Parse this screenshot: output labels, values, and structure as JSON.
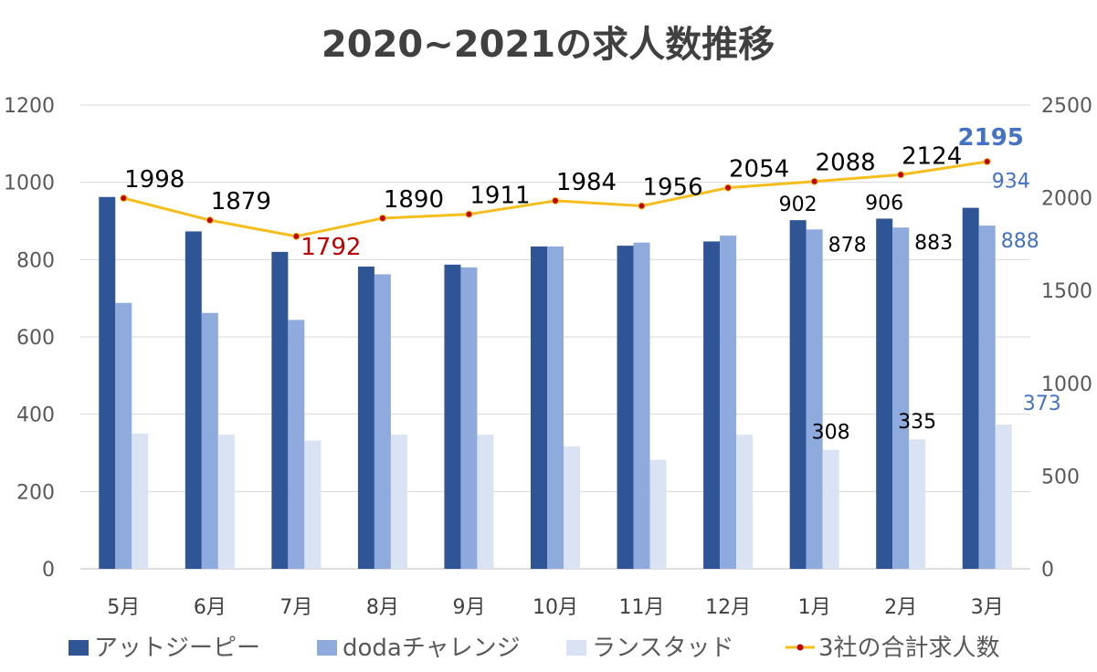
{
  "chart_data": {
    "type": "bar",
    "title": "2020~2021の求人数推移",
    "categories": [
      "5月",
      "6月",
      "7月",
      "8月",
      "9月",
      "10月",
      "11月",
      "12月",
      "1月",
      "2月",
      "3月"
    ],
    "y_left": {
      "ylim": [
        0,
        1200
      ],
      "ticks": [
        "0",
        "200",
        "400",
        "600",
        "800",
        "1000",
        "1200"
      ]
    },
    "y_right": {
      "ylim": [
        0,
        2500
      ],
      "ticks": [
        "0",
        "500",
        "1000",
        "1500",
        "2000",
        "2500"
      ]
    },
    "series": [
      {
        "name": "アットジーピー",
        "type": "bar",
        "axis": "left",
        "color": "#2F5597",
        "values": [
          962,
          873,
          820,
          782,
          787,
          834,
          836,
          847,
          902,
          906,
          934
        ]
      },
      {
        "name": "dodaチャレンジ",
        "type": "bar",
        "axis": "left",
        "color": "#8FAADC",
        "values": [
          688,
          662,
          644,
          762,
          780,
          834,
          844,
          862,
          878,
          883,
          888
        ]
      },
      {
        "name": "ランスタッド",
        "type": "bar",
        "axis": "left",
        "color": "#DAE3F3",
        "values": [
          350,
          347,
          332,
          347,
          347,
          317,
          282,
          347,
          308,
          335,
          373
        ]
      },
      {
        "name": "3社の合計求人数",
        "type": "line",
        "axis": "right",
        "color": "#F5BE1D",
        "marker_color": "#C00000",
        "values": [
          1998,
          1879,
          1792,
          1890,
          1911,
          1984,
          1956,
          2054,
          2088,
          2124,
          2195
        ]
      }
    ],
    "data_labels": {
      "total": [
        "1998",
        "1879",
        "1792",
        "1890",
        "1911",
        "1984",
        "1956",
        "2054",
        "2088",
        "2124",
        "2195"
      ],
      "bars": [
        {
          "category_index": 8,
          "series_index": 0,
          "text": "902"
        },
        {
          "category_index": 8,
          "series_index": 1,
          "text": "878"
        },
        {
          "category_index": 8,
          "series_index": 2,
          "text": "308"
        },
        {
          "category_index": 9,
          "series_index": 0,
          "text": "906"
        },
        {
          "category_index": 9,
          "series_index": 1,
          "text": "883"
        },
        {
          "category_index": 9,
          "series_index": 2,
          "text": "335"
        },
        {
          "category_index": 10,
          "series_index": 0,
          "text": "934"
        },
        {
          "category_index": 10,
          "series_index": 1,
          "text": "888"
        },
        {
          "category_index": 10,
          "series_index": 2,
          "text": "373"
        }
      ],
      "highlight_min_color": "#C00000",
      "highlight_last_color": "#4472C4"
    },
    "grid": true,
    "legend_position": "bottom"
  }
}
